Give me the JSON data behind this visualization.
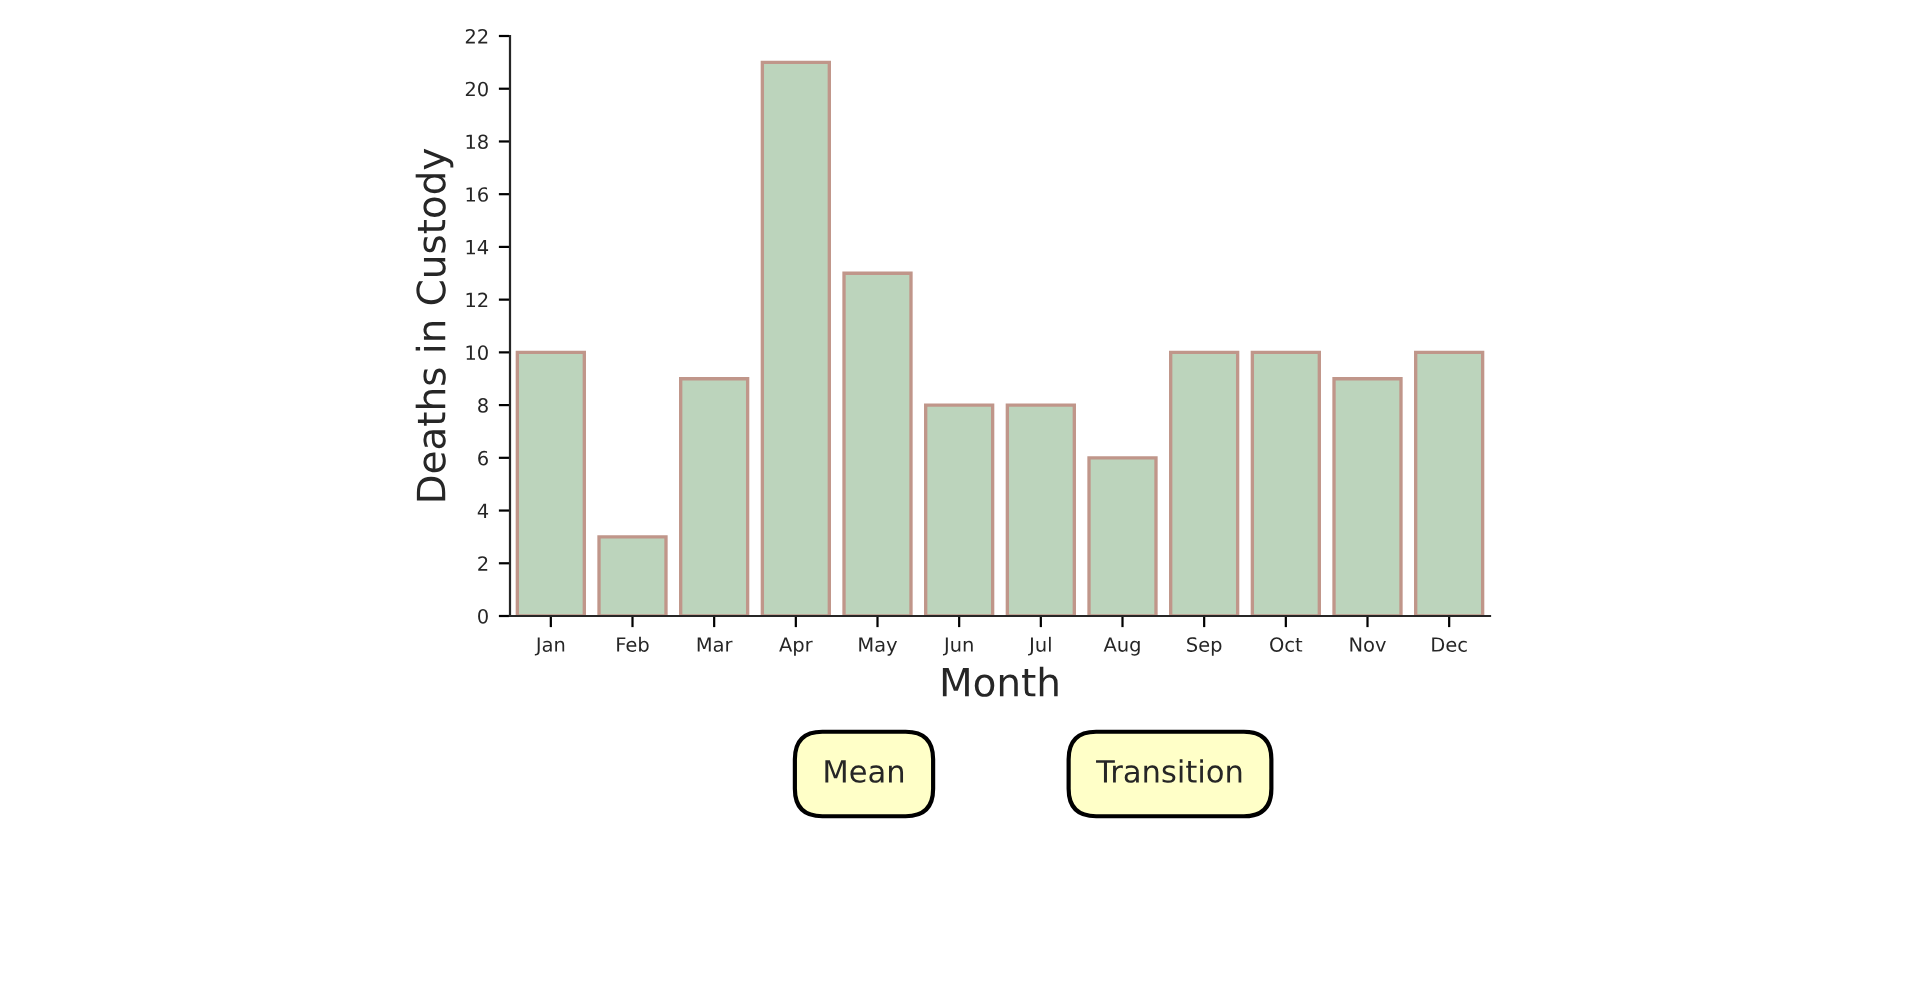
{
  "chart_data": {
    "type": "bar",
    "xlabel": "Month",
    "ylabel": "Deaths in Custody",
    "categories": [
      "Jan",
      "Feb",
      "Mar",
      "Apr",
      "May",
      "Jun",
      "Jul",
      "Aug",
      "Sep",
      "Oct",
      "Nov",
      "Dec"
    ],
    "series": [
      {
        "color": "#bcd4bc",
        "values": [
          10,
          3,
          9,
          21,
          13,
          8,
          8,
          6,
          10,
          10,
          9,
          10
        ]
      }
    ],
    "ylim": [
      0,
      22
    ],
    "yticks": [
      0,
      2,
      4,
      6,
      8,
      10,
      12,
      14,
      16,
      18,
      20,
      22
    ],
    "grid": false,
    "legend": false,
    "annotations": [
      "Mean",
      "Transition"
    ]
  }
}
